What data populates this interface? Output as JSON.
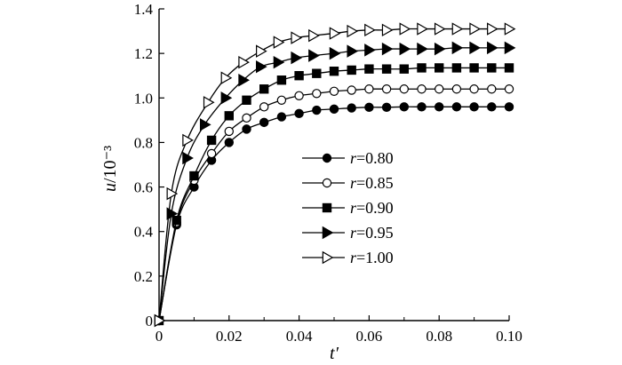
{
  "chart_data": {
    "type": "line",
    "xlabel": "t′",
    "ylabel": "u/10⁻³",
    "xlim": [
      0,
      0.1
    ],
    "ylim": [
      0,
      1.4
    ],
    "x_ticks": [
      "0",
      "0.02",
      "0.04",
      "0.06",
      "0.08",
      "0.10"
    ],
    "y_ticks": [
      "0",
      "0.2",
      "0.4",
      "0.6",
      "0.8",
      "1.0",
      "1.2",
      "1.4"
    ],
    "grid": false,
    "legend_position": "center-right",
    "series": [
      {
        "name": "r=0.80",
        "var": "r",
        "eq": "=0.80",
        "marker": "circle-filled",
        "x": [
          0,
          0.005,
          0.01,
          0.015,
          0.02,
          0.025,
          0.03,
          0.035,
          0.04,
          0.045,
          0.05,
          0.055,
          0.06,
          0.065,
          0.07,
          0.075,
          0.08,
          0.085,
          0.09,
          0.095,
          0.1
        ],
        "y": [
          0,
          0.43,
          0.6,
          0.72,
          0.8,
          0.86,
          0.89,
          0.915,
          0.93,
          0.945,
          0.95,
          0.955,
          0.958,
          0.958,
          0.96,
          0.96,
          0.96,
          0.96,
          0.96,
          0.96,
          0.96
        ]
      },
      {
        "name": "r=0.85",
        "var": "r",
        "eq": "=0.85",
        "marker": "circle-open",
        "x": [
          0,
          0.005,
          0.01,
          0.015,
          0.02,
          0.025,
          0.03,
          0.035,
          0.04,
          0.045,
          0.05,
          0.055,
          0.06,
          0.065,
          0.07,
          0.075,
          0.08,
          0.085,
          0.09,
          0.095,
          0.1
        ],
        "y": [
          0,
          0.44,
          0.63,
          0.75,
          0.85,
          0.91,
          0.96,
          0.99,
          1.01,
          1.02,
          1.03,
          1.035,
          1.04,
          1.04,
          1.04,
          1.04,
          1.04,
          1.04,
          1.04,
          1.04,
          1.04
        ]
      },
      {
        "name": "r=0.90",
        "var": "r",
        "eq": "=0.90",
        "marker": "square-filled",
        "x": [
          0,
          0.005,
          0.01,
          0.015,
          0.02,
          0.025,
          0.03,
          0.035,
          0.04,
          0.045,
          0.05,
          0.055,
          0.06,
          0.065,
          0.07,
          0.075,
          0.08,
          0.085,
          0.09,
          0.095,
          0.1
        ],
        "y": [
          0,
          0.45,
          0.65,
          0.81,
          0.92,
          0.99,
          1.04,
          1.08,
          1.1,
          1.11,
          1.12,
          1.125,
          1.13,
          1.13,
          1.13,
          1.135,
          1.135,
          1.135,
          1.135,
          1.135,
          1.135
        ]
      },
      {
        "name": "r=0.95",
        "var": "r",
        "eq": "=0.95",
        "marker": "triangle-right-filled",
        "x": [
          0,
          0.0035,
          0.008,
          0.013,
          0.019,
          0.024,
          0.029,
          0.034,
          0.039,
          0.044,
          0.05,
          0.055,
          0.06,
          0.065,
          0.07,
          0.075,
          0.08,
          0.085,
          0.09,
          0.095,
          0.1
        ],
        "y": [
          0,
          0.48,
          0.73,
          0.88,
          1.0,
          1.08,
          1.14,
          1.16,
          1.18,
          1.19,
          1.2,
          1.21,
          1.215,
          1.22,
          1.22,
          1.22,
          1.22,
          1.225,
          1.225,
          1.225,
          1.225
        ]
      },
      {
        "name": "r=1.00",
        "var": "r",
        "eq": "=1.00",
        "marker": "triangle-right-open",
        "x": [
          0,
          0.0035,
          0.008,
          0.014,
          0.019,
          0.024,
          0.029,
          0.034,
          0.039,
          0.044,
          0.05,
          0.055,
          0.06,
          0.065,
          0.07,
          0.075,
          0.08,
          0.085,
          0.09,
          0.095,
          0.1
        ],
        "y": [
          0,
          0.57,
          0.81,
          0.98,
          1.09,
          1.16,
          1.21,
          1.25,
          1.27,
          1.28,
          1.29,
          1.3,
          1.305,
          1.305,
          1.31,
          1.31,
          1.31,
          1.31,
          1.31,
          1.31,
          1.31
        ]
      }
    ]
  }
}
